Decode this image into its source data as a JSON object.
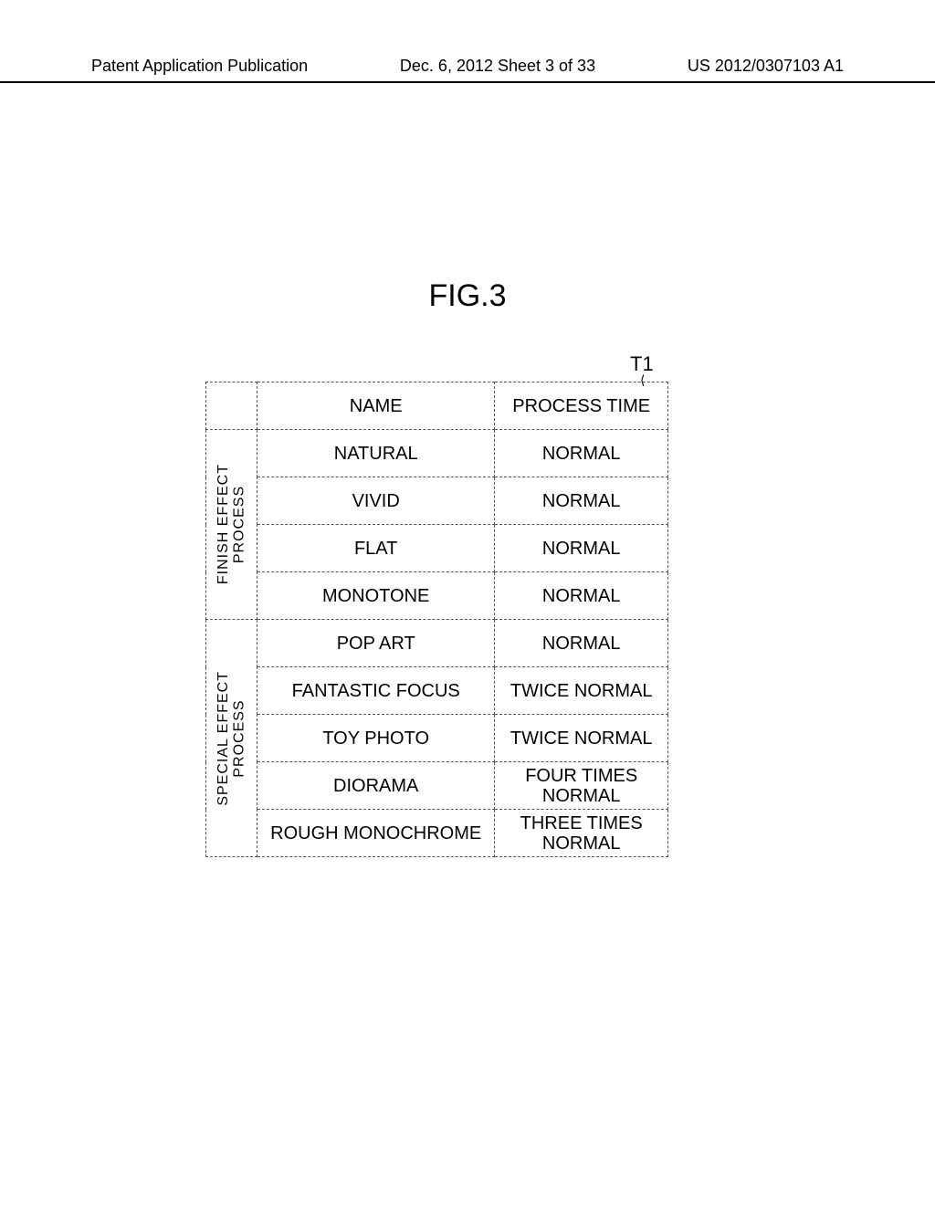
{
  "header": {
    "left": "Patent Application Publication",
    "center": "Dec. 6, 2012  Sheet 3 of 33",
    "right": "US 2012/0307103 A1"
  },
  "figure": {
    "title": "FIG.3",
    "table_label": "T1",
    "columns": [
      "NAME",
      "PROCESS TIME"
    ],
    "groups": [
      {
        "label": "FINISH EFFECT\nPROCESS",
        "rows": [
          {
            "name": "NATURAL",
            "time": "NORMAL"
          },
          {
            "name": "VIVID",
            "time": "NORMAL"
          },
          {
            "name": "FLAT",
            "time": "NORMAL"
          },
          {
            "name": "MONOTONE",
            "time": "NORMAL"
          }
        ]
      },
      {
        "label": "SPECIAL EFFECT\nPROCESS",
        "rows": [
          {
            "name": "POP ART",
            "time": "NORMAL"
          },
          {
            "name": "FANTASTIC FOCUS",
            "time": "TWICE NORMAL"
          },
          {
            "name": "TOY PHOTO",
            "time": "TWICE NORMAL"
          },
          {
            "name": "DIORAMA",
            "time": "FOUR TIMES\nNORMAL"
          },
          {
            "name": "ROUGH MONOCHROME",
            "time": "THREE TIMES\nNORMAL"
          }
        ]
      }
    ]
  },
  "style": {
    "page_bg": "#ffffff",
    "text_color": "#000000",
    "border_color": "#555555",
    "header_fontsize": 18,
    "title_fontsize": 34,
    "cell_fontsize": 20,
    "vert_fontsize": 16
  }
}
